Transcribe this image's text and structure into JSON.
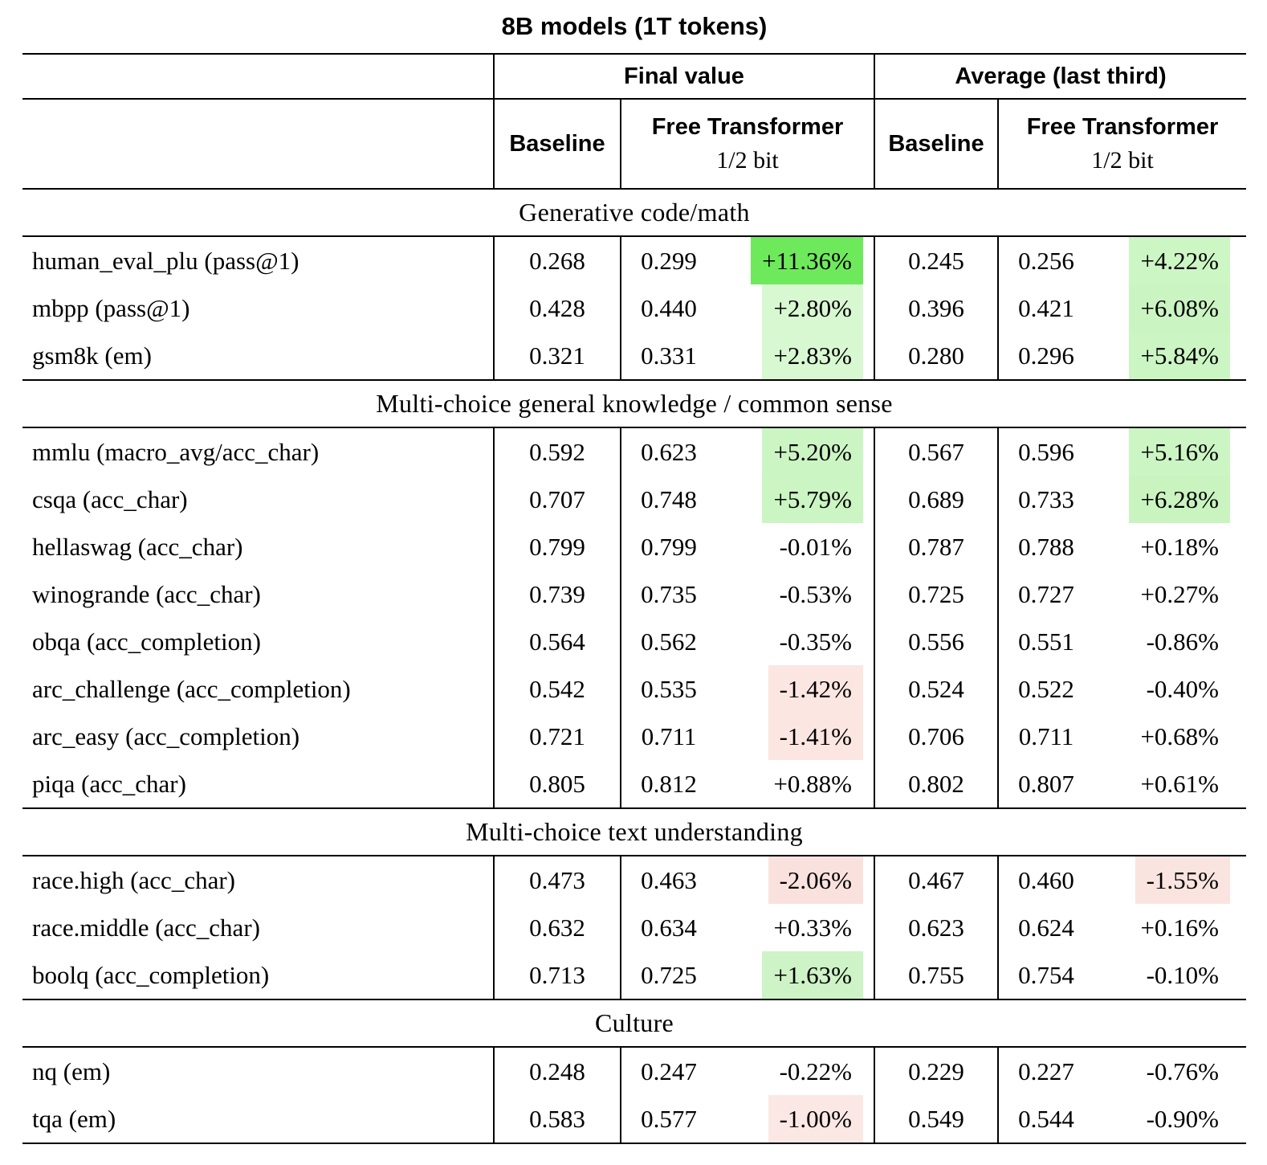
{
  "title": "8B models (1T tokens)",
  "header": {
    "group_final": "Final value",
    "group_average": "Average (last third)",
    "baseline": "Baseline",
    "free_transformer": "Free Transformer",
    "free_transformer_sub": "1/2 bit"
  },
  "colors": {
    "strong_positive": "#6fe95c",
    "pale_positive": "#ccf5c4",
    "pale_negative": "#fbe6e2",
    "rule": "#000000",
    "background": "#ffffff"
  },
  "sections": [
    {
      "label": "Generative code/math",
      "rows": [
        {
          "label": "human_eval_plu (pass@1)",
          "final": {
            "baseline": "0.268",
            "ft": "0.299",
            "delta": "+11.36%",
            "delta_bg": "#6fe95c"
          },
          "avg": {
            "baseline": "0.245",
            "ft": "0.256",
            "delta": "+4.22%",
            "delta_bg": "#cdf6c5"
          }
        },
        {
          "label": "mbpp (pass@1)",
          "final": {
            "baseline": "0.428",
            "ft": "0.440",
            "delta": "+2.80%",
            "delta_bg": "#d8f8d1"
          },
          "avg": {
            "baseline": "0.396",
            "ft": "0.421",
            "delta": "+6.08%",
            "delta_bg": "#caf5c2"
          }
        },
        {
          "label": "gsm8k (em)",
          "final": {
            "baseline": "0.321",
            "ft": "0.331",
            "delta": "+2.83%",
            "delta_bg": "#d8f8d1"
          },
          "avg": {
            "baseline": "0.280",
            "ft": "0.296",
            "delta": "+5.84%",
            "delta_bg": "#cbf5c3"
          }
        }
      ]
    },
    {
      "label": "Multi-choice general knowledge / common sense",
      "rows": [
        {
          "label": "mmlu (macro_avg/acc_char)",
          "final": {
            "baseline": "0.592",
            "ft": "0.623",
            "delta": "+5.20%",
            "delta_bg": "#ccf5c4"
          },
          "avg": {
            "baseline": "0.567",
            "ft": "0.596",
            "delta": "+5.16%",
            "delta_bg": "#ccf5c4"
          }
        },
        {
          "label": "csqa (acc_char)",
          "final": {
            "baseline": "0.707",
            "ft": "0.748",
            "delta": "+5.79%",
            "delta_bg": "#cbf5c2"
          },
          "avg": {
            "baseline": "0.689",
            "ft": "0.733",
            "delta": "+6.28%",
            "delta_bg": "#c9f4c0"
          }
        },
        {
          "label": "hellaswag (acc_char)",
          "final": {
            "baseline": "0.799",
            "ft": "0.799",
            "delta": "-0.01%",
            "delta_bg": null
          },
          "avg": {
            "baseline": "0.787",
            "ft": "0.788",
            "delta": "+0.18%",
            "delta_bg": null
          }
        },
        {
          "label": "winogrande (acc_char)",
          "final": {
            "baseline": "0.739",
            "ft": "0.735",
            "delta": "-0.53%",
            "delta_bg": null
          },
          "avg": {
            "baseline": "0.725",
            "ft": "0.727",
            "delta": "+0.27%",
            "delta_bg": null
          }
        },
        {
          "label": "obqa (acc_completion)",
          "final": {
            "baseline": "0.564",
            "ft": "0.562",
            "delta": "-0.35%",
            "delta_bg": null
          },
          "avg": {
            "baseline": "0.556",
            "ft": "0.551",
            "delta": "-0.86%",
            "delta_bg": null
          }
        },
        {
          "label": "arc_challenge (acc_completion)",
          "final": {
            "baseline": "0.542",
            "ft": "0.535",
            "delta": "-1.42%",
            "delta_bg": "#fbe6e2"
          },
          "avg": {
            "baseline": "0.524",
            "ft": "0.522",
            "delta": "-0.40%",
            "delta_bg": null
          }
        },
        {
          "label": "arc_easy (acc_completion)",
          "final": {
            "baseline": "0.721",
            "ft": "0.711",
            "delta": "-1.41%",
            "delta_bg": "#fbe6e2"
          },
          "avg": {
            "baseline": "0.706",
            "ft": "0.711",
            "delta": "+0.68%",
            "delta_bg": null
          }
        },
        {
          "label": "piqa (acc_char)",
          "final": {
            "baseline": "0.805",
            "ft": "0.812",
            "delta": "+0.88%",
            "delta_bg": null
          },
          "avg": {
            "baseline": "0.802",
            "ft": "0.807",
            "delta": "+0.61%",
            "delta_bg": null
          }
        }
      ]
    },
    {
      "label": "Multi-choice text understanding",
      "rows": [
        {
          "label": "race.high (acc_char)",
          "final": {
            "baseline": "0.473",
            "ft": "0.463",
            "delta": "-2.06%",
            "delta_bg": "#f9e2de"
          },
          "avg": {
            "baseline": "0.467",
            "ft": "0.460",
            "delta": "-1.55%",
            "delta_bg": "#fae4e0"
          }
        },
        {
          "label": "race.middle (acc_char)",
          "final": {
            "baseline": "0.632",
            "ft": "0.634",
            "delta": "+0.33%",
            "delta_bg": null
          },
          "avg": {
            "baseline": "0.623",
            "ft": "0.624",
            "delta": "+0.16%",
            "delta_bg": null
          }
        },
        {
          "label": "boolq (acc_completion)",
          "final": {
            "baseline": "0.713",
            "ft": "0.725",
            "delta": "+1.63%",
            "delta_bg": "#cdf3c6"
          },
          "avg": {
            "baseline": "0.755",
            "ft": "0.754",
            "delta": "-0.10%",
            "delta_bg": null
          }
        }
      ]
    },
    {
      "label": "Culture",
      "rows": [
        {
          "label": "nq (em)",
          "final": {
            "baseline": "0.248",
            "ft": "0.247",
            "delta": "-0.22%",
            "delta_bg": null
          },
          "avg": {
            "baseline": "0.229",
            "ft": "0.227",
            "delta": "-0.76%",
            "delta_bg": null
          }
        },
        {
          "label": "tqa (em)",
          "final": {
            "baseline": "0.583",
            "ft": "0.577",
            "delta": "-1.00%",
            "delta_bg": "#fbe8e4"
          },
          "avg": {
            "baseline": "0.549",
            "ft": "0.544",
            "delta": "-0.90%",
            "delta_bg": null
          }
        }
      ]
    }
  ]
}
